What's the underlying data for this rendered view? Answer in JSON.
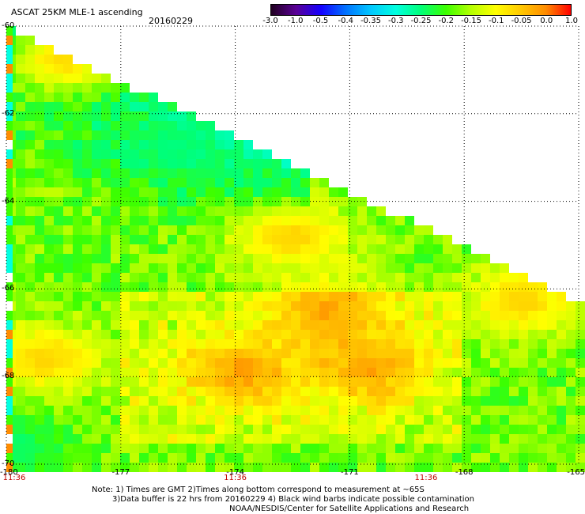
{
  "header": {
    "title": "ASCAT 25KM MLE-1 ascending",
    "date": "20160229"
  },
  "colorbar": {
    "ticks": [
      "-3.0",
      "-1.0",
      "-0.5",
      "-0.4",
      "-0.35",
      "-0.3",
      "-0.25",
      "-0.2",
      "-0.15",
      "-0.1",
      "-0.05",
      "0.0",
      "1.0"
    ],
    "colors": [
      "#200020",
      "#5a0096",
      "#1400ff",
      "#0073ff",
      "#00c8ff",
      "#00ffe0",
      "#00ff78",
      "#3cff00",
      "#b4ff00",
      "#ffff00",
      "#ffc800",
      "#ff8c00",
      "#ff0000"
    ]
  },
  "chart_data": {
    "type": "heatmap",
    "title": "ASCAT 25KM MLE-1 ascending",
    "subtitle": "20160229",
    "xlabel": "",
    "ylabel": "",
    "x_ticks": [
      "-180",
      "-177",
      "-174",
      "-171",
      "-168",
      "-165"
    ],
    "x_tick_values": [
      -180,
      -177,
      -174,
      -171,
      -168,
      -165
    ],
    "y_ticks": [
      "-60",
      "-62",
      "-64",
      "-66",
      "-68",
      "-70"
    ],
    "y_tick_values": [
      -60,
      -62,
      -64,
      -66,
      -68,
      -70
    ],
    "xlim": [
      -180,
      -165
    ],
    "ylim": [
      -70,
      -60
    ],
    "grid": true,
    "time_labels": [
      "11:36",
      "11:36",
      "11:36"
    ],
    "time_label_lons": [
      -180,
      -174,
      -169
    ],
    "swath_edge": [
      [
        -180,
        -60
      ],
      [
        -165,
        -66.3
      ]
    ],
    "color_scale": [
      "-3.0",
      "-1.0",
      "-0.5",
      "-0.4",
      "-0.35",
      "-0.3",
      "-0.25",
      "-0.2",
      "-0.15",
      "-0.1",
      "-0.05",
      "0.0",
      "1.0"
    ],
    "hotspots": [
      {
        "lon": -178.5,
        "lat": -60.8,
        "value": -0.05
      },
      {
        "lon": -172.5,
        "lat": -64.8,
        "value": -0.05
      },
      {
        "lon": -171.5,
        "lat": -66.5,
        "value": -0.05
      },
      {
        "lon": -170.5,
        "lat": -67.8,
        "value": -0.05
      },
      {
        "lon": -166.5,
        "lat": -66.3,
        "value": -0.05
      },
      {
        "lon": -173.8,
        "lat": -67.9,
        "value": -0.05
      },
      {
        "lon": -179.0,
        "lat": -67.6,
        "value": -0.05
      },
      {
        "lon": -175.5,
        "lat": -62.8,
        "value": -0.25
      },
      {
        "lon": -180.0,
        "lat": -69.6,
        "value": -0.25
      }
    ]
  },
  "notes": {
    "line1": "Note: 1) Times are GMT 2)Times along bottom correspond to measurement at ~65S",
    "line2": "3)Data buffer is 22 hrs from 20160229 4) Black wind barbs indicate possible contamination",
    "line3": "NOAA/NESDIS/Center for Satellite Applications and Research"
  }
}
